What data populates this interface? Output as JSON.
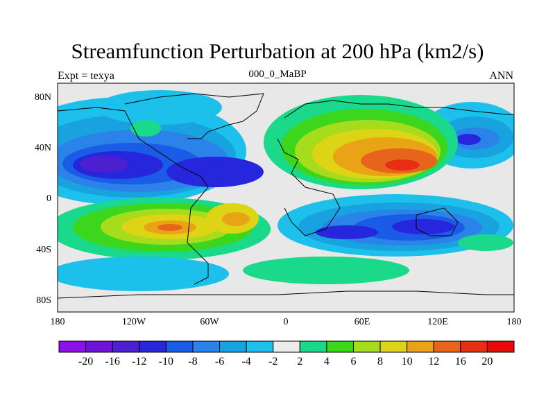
{
  "plot": {
    "title": "Streamfunction Perturbation at 200 hPa (km2/s)",
    "left_string": "Expt = texya",
    "center_string": "000_0_MaBP",
    "right_string": "ANN"
  },
  "axes": {
    "x_ticks": [
      "180",
      "120W",
      "60W",
      "0",
      "60E",
      "120E",
      "180"
    ],
    "y_ticks": [
      "80N",
      "40N",
      "0",
      "40S",
      "80S"
    ]
  },
  "colorbar": {
    "labels": [
      "-20",
      "-16",
      "-12",
      "-10",
      "-8",
      "-6",
      "-4",
      "-2",
      "2",
      "4",
      "6",
      "8",
      "10",
      "12",
      "16",
      "20"
    ],
    "colors": [
      "#8a11e8",
      "#6e14d8",
      "#4c1fd0",
      "#2626dd",
      "#1a5ce6",
      "#2b82e8",
      "#18a3e0",
      "#1cc0ea",
      "#ececec",
      "#1ad98a",
      "#3cd61c",
      "#a6dc1c",
      "#dcd414",
      "#e8a414",
      "#e8641c",
      "#e82e14",
      "#ea0a0a"
    ]
  },
  "colors": {
    "background": "#e8e8e8",
    "border": "#000000"
  }
}
